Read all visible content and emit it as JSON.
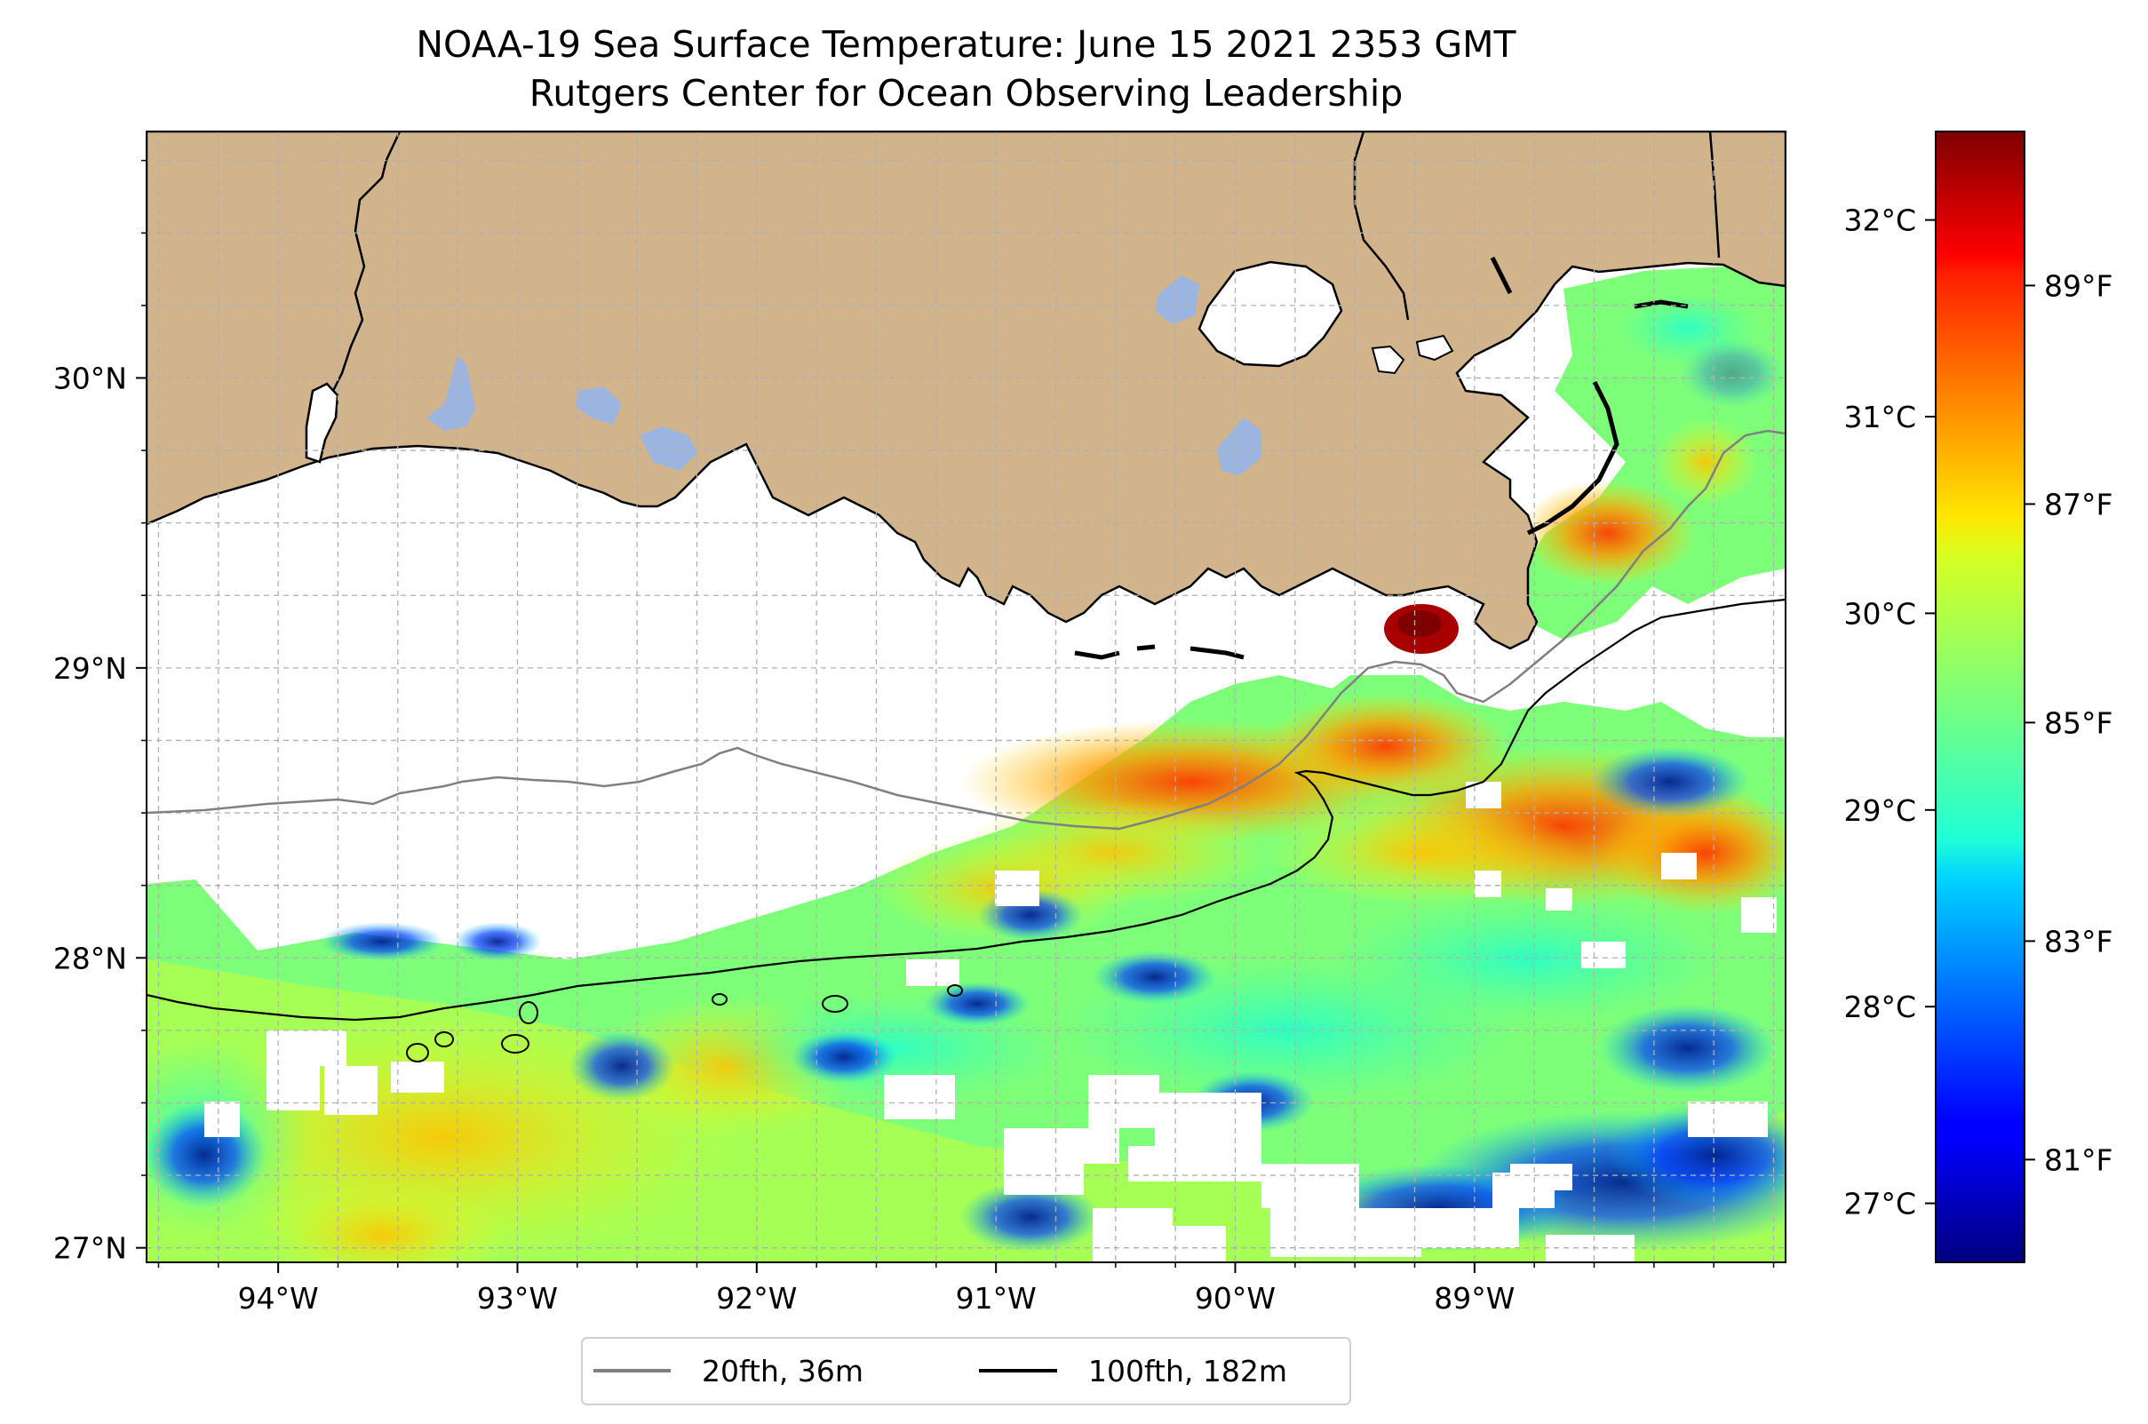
{
  "title": {
    "line1": "NOAA-19 Sea Surface Temperature: June 15 2021 2353 GMT",
    "line2": "Rutgers Center for Ocean Observing Leadership"
  },
  "map": {
    "lon_range": [
      -94.55,
      -87.7
    ],
    "lat_range": [
      26.95,
      30.85
    ],
    "lon_ticks": [
      {
        "value": -94,
        "label": "94°W"
      },
      {
        "value": -93,
        "label": "93°W"
      },
      {
        "value": -92,
        "label": "92°W"
      },
      {
        "value": -91,
        "label": "91°W"
      },
      {
        "value": -90,
        "label": "90°W"
      },
      {
        "value": -89,
        "label": "89°W"
      }
    ],
    "lat_ticks": [
      {
        "value": 27,
        "label": "27°N"
      },
      {
        "value": 28,
        "label": "28°N"
      },
      {
        "value": 29,
        "label": "29°N"
      },
      {
        "value": 30,
        "label": "30°N"
      }
    ],
    "grid": true,
    "colors": {
      "land": "#d2b48c",
      "lakes": "#9bb4e0",
      "no_data": "#ffffff",
      "isobath_20": "#808080",
      "isobath_100": "#000000"
    }
  },
  "colorbar": {
    "colormap": "jet",
    "celsius_range": [
      26.7,
      32.45
    ],
    "celsius_ticks": [
      {
        "value": 27,
        "label": "27°C"
      },
      {
        "value": 28,
        "label": "28°C"
      },
      {
        "value": 29,
        "label": "29°C"
      },
      {
        "value": 30,
        "label": "30°C"
      },
      {
        "value": 31,
        "label": "31°C"
      },
      {
        "value": 32,
        "label": "32°C"
      }
    ],
    "fahrenheit_ticks": [
      {
        "value": 81,
        "label": "81°F"
      },
      {
        "value": 83,
        "label": "83°F"
      },
      {
        "value": 85,
        "label": "85°F"
      },
      {
        "value": 87,
        "label": "87°F"
      },
      {
        "value": 89,
        "label": "89°F"
      }
    ]
  },
  "legend": {
    "placement": "bottom-center",
    "items": [
      {
        "label": "20fth, 36m",
        "color": "#808080"
      },
      {
        "label": "100fth, 182m",
        "color": "#000000"
      }
    ]
  }
}
